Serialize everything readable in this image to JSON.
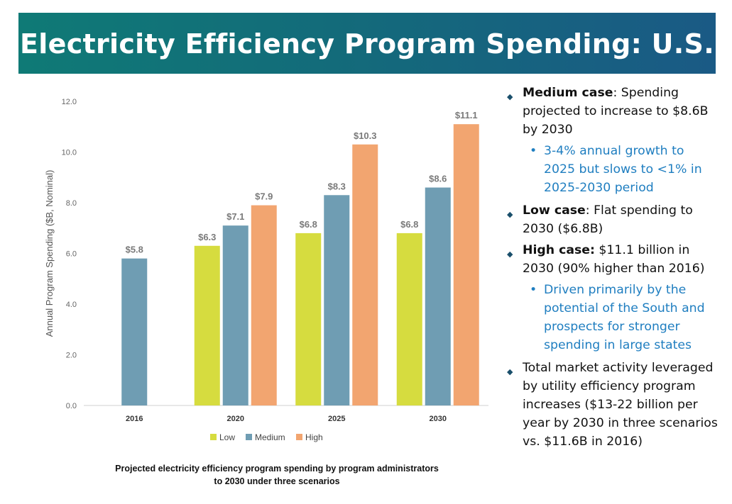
{
  "title": "Electricity Efficiency Program Spending: U.S.",
  "caption_lines": [
    "Projected electricity efficiency program spending by program administrators",
    "to 2030 under three scenarios"
  ],
  "bullets": [
    {
      "bold": "Medium case",
      "text": ": Spending projected to increase to $8.6B by 2030"
    },
    {
      "sub": "3-4% annual growth to 2025 but slows to <1% in 2025-2030 period"
    },
    {
      "bold": "Low case",
      "text": ": Flat spending to 2030 ($6.8B)"
    },
    {
      "bold": "High case:",
      "text": " $11.1 billion in 2030 (90% higher than 2016)"
    },
    {
      "sub": "Driven primarily by the potential of the South and prospects for stronger spending in large states"
    },
    {
      "bold": "",
      "text": "Total market activity leveraged by utility efficiency program increases ($13-22 billion per year by 2030 in three scenarios vs. $11.6B in 2016)"
    }
  ],
  "colors": {
    "Low": "#d6dc3f",
    "Medium": "#6f9db3",
    "High": "#f2a570",
    "label": "#7a7a7a"
  },
  "chart_data": {
    "type": "bar",
    "categories": [
      "2016",
      "2020",
      "2025",
      "2030"
    ],
    "series": [
      {
        "name": "Low",
        "values": [
          null,
          6.3,
          6.8,
          6.8
        ],
        "labels": [
          null,
          "$6.3",
          "$6.8",
          "$6.8"
        ]
      },
      {
        "name": "Medium",
        "values": [
          5.8,
          7.1,
          8.3,
          8.6
        ],
        "labels": [
          "$5.8",
          "$7.1",
          "$8.3",
          "$8.6"
        ]
      },
      {
        "name": "High",
        "values": [
          null,
          7.9,
          10.3,
          11.1
        ],
        "labels": [
          null,
          "$7.9",
          "$10.3",
          "$11.1"
        ]
      }
    ],
    "ylabel": "Annual Program Spending ($B, Nominal)",
    "xlabel": "",
    "ylim": [
      0,
      12
    ],
    "yticks": [
      "0.0",
      "2.0",
      "4.0",
      "6.0",
      "8.0",
      "10.0",
      "12.0"
    ],
    "legend": "bottom",
    "grid": false
  }
}
